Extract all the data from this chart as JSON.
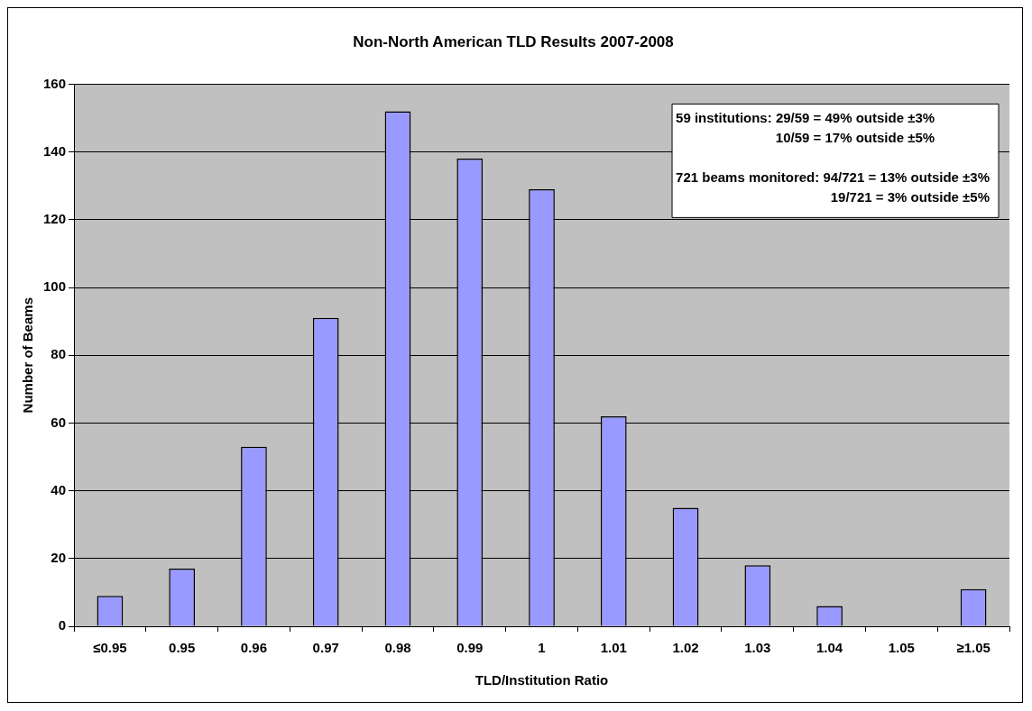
{
  "chart_data": {
    "type": "bar",
    "title": "Non-North American TLD Results 2007-2008",
    "xlabel": "TLD/Institution Ratio",
    "ylabel": "Number of Beams",
    "categories": [
      "≤0.95",
      "0.95",
      "0.96",
      "0.97",
      "0.98",
      "0.99",
      "1",
      "1.01",
      "1.02",
      "1.03",
      "1.04",
      "1.05",
      "≥1.05"
    ],
    "values": [
      9,
      17,
      53,
      91,
      152,
      138,
      129,
      62,
      35,
      18,
      6,
      0,
      11
    ],
    "color": "#9999ff",
    "ylim": [
      0,
      160
    ],
    "yticks": [
      0,
      20,
      40,
      60,
      80,
      100,
      120,
      140,
      160
    ],
    "grid": "y",
    "legend": false,
    "annotations": [
      "59 institutions: 29/59 = 49% outside ±3%",
      "10/59 = 17% outside ±5%",
      "721 beams monitored: 94/721 = 13% outside ±3%",
      "19/721 = 3% outside ±5%"
    ]
  }
}
